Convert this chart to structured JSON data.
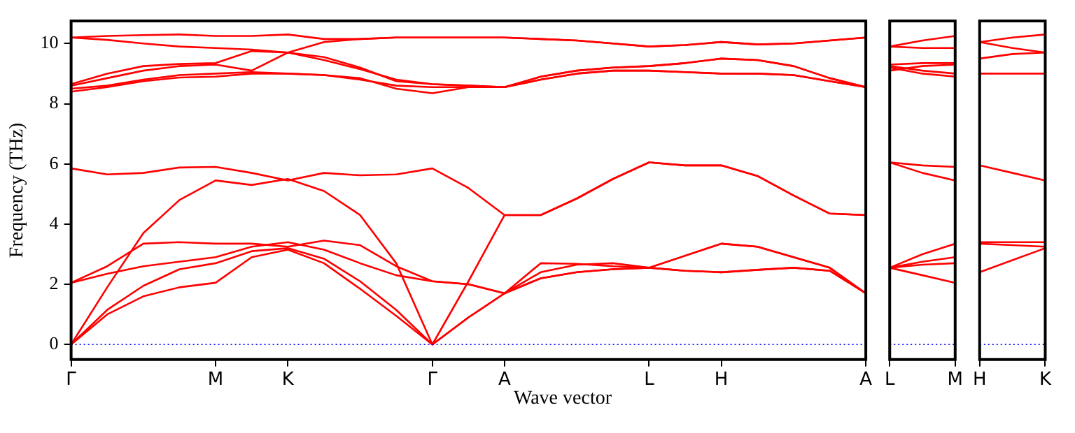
{
  "chart_data": [
    {
      "type": "line",
      "xlabel": "Wave vector",
      "ylabel": "Frequency (THz)",
      "grid": false,
      "legend": false,
      "marker": "none",
      "line_style": "solid",
      "categories": [
        "Γ",
        null,
        null,
        null,
        "M",
        null,
        "K",
        null,
        null,
        null,
        "Γ",
        null,
        "A",
        null,
        null,
        null,
        "L",
        null,
        "H",
        null,
        null,
        null,
        "A"
      ],
      "ylim": [
        -0.5,
        10.75
      ],
      "yticks": [
        0,
        2,
        4,
        6,
        8,
        10
      ],
      "ref_lines": [
        {
          "axis": "y",
          "value": 0,
          "label": null,
          "color": "#0000ff",
          "line_style": "dotted"
        }
      ],
      "series": [
        {
          "color": "#ff0000",
          "values": [
            0,
            1.0,
            1.6,
            1.9,
            2.05,
            2.9,
            3.15,
            2.7,
            1.85,
            0.95,
            0,
            0.9,
            1.7,
            2.2,
            2.4,
            2.5,
            2.55,
            2.45,
            2.4,
            2.48,
            2.55,
            2.45,
            1.7
          ]
        },
        {
          "color": "#ff0000",
          "values": [
            0,
            1.15,
            1.95,
            2.5,
            2.7,
            3.1,
            3.2,
            2.85,
            2.1,
            1.15,
            0,
            0.9,
            1.7,
            2.4,
            2.65,
            2.7,
            2.55,
            2.95,
            3.35,
            3.25,
            2.9,
            2.55,
            1.7
          ]
        },
        {
          "color": "#ff0000",
          "values": [
            0,
            1.9,
            3.7,
            4.8,
            5.45,
            5.3,
            5.5,
            5.1,
            4.3,
            2.7,
            0,
            2.1,
            4.3,
            4.3,
            4.85,
            5.5,
            6.05,
            5.95,
            5.95,
            5.6,
            4.95,
            4.35,
            4.3
          ]
        },
        {
          "color": "#ff0000",
          "values": [
            2.05,
            2.6,
            3.35,
            3.4,
            3.35,
            3.35,
            3.25,
            3.45,
            3.3,
            2.6,
            2.1,
            2.0,
            1.7,
            2.7,
            2.68,
            2.6,
            2.55,
            2.95,
            3.35,
            3.25,
            2.9,
            2.55,
            1.7
          ]
        },
        {
          "color": "#ff0000",
          "values": [
            2.05,
            2.35,
            2.6,
            2.75,
            2.9,
            3.25,
            3.4,
            3.15,
            2.7,
            2.3,
            2.1,
            2.0,
            1.7,
            2.2,
            2.4,
            2.5,
            2.55,
            2.45,
            2.4,
            2.48,
            2.55,
            2.45,
            1.7
          ]
        },
        {
          "color": "#ff0000",
          "values": [
            5.85,
            5.65,
            5.7,
            5.88,
            5.9,
            5.7,
            5.45,
            5.7,
            5.62,
            5.65,
            5.85,
            5.2,
            4.3,
            4.3,
            4.85,
            5.5,
            6.05,
            5.95,
            5.95,
            5.6,
            4.95,
            4.35,
            4.3
          ]
        },
        {
          "color": "#ff0000",
          "values": [
            8.4,
            8.55,
            8.75,
            8.87,
            8.9,
            9.0,
            9.0,
            8.95,
            8.85,
            8.5,
            8.35,
            8.55,
            8.55,
            8.8,
            9.0,
            9.1,
            9.1,
            9.05,
            9.0,
            9.0,
            8.95,
            8.75,
            8.55
          ]
        },
        {
          "color": "#ff0000",
          "values": [
            8.5,
            8.6,
            8.8,
            8.95,
            9.0,
            9.05,
            9.0,
            8.95,
            8.8,
            8.6,
            8.55,
            8.55,
            8.55,
            8.9,
            9.1,
            9.2,
            9.25,
            9.35,
            9.5,
            9.45,
            9.25,
            8.85,
            8.55
          ]
        },
        {
          "color": "#ff0000",
          "values": [
            8.6,
            8.85,
            9.1,
            9.25,
            9.3,
            9.1,
            9.7,
            9.55,
            9.2,
            8.75,
            8.65,
            8.6,
            8.55,
            8.9,
            9.1,
            9.2,
            9.25,
            9.35,
            9.5,
            9.45,
            9.25,
            8.85,
            8.55
          ]
        },
        {
          "color": "#ff0000",
          "values": [
            8.65,
            9.0,
            9.25,
            9.32,
            9.35,
            9.75,
            9.7,
            10.05,
            10.15,
            10.2,
            10.2,
            10.2,
            10.2,
            10.15,
            10.1,
            10.0,
            9.9,
            9.95,
            10.05,
            9.97,
            10.0,
            10.1,
            10.2
          ]
        },
        {
          "color": "#ff0000",
          "values": [
            10.2,
            10.12,
            10.0,
            9.9,
            9.85,
            9.8,
            9.7,
            9.45,
            9.15,
            8.8,
            8.65,
            8.6,
            8.55,
            8.8,
            9.0,
            9.1,
            9.1,
            9.05,
            9.0,
            9.0,
            8.95,
            8.75,
            8.55
          ]
        },
        {
          "color": "#ff0000",
          "values": [
            10.2,
            10.25,
            10.28,
            10.3,
            10.25,
            10.25,
            10.3,
            10.15,
            10.15,
            10.2,
            10.2,
            10.2,
            10.2,
            10.15,
            10.1,
            10.0,
            9.9,
            9.95,
            10.05,
            9.97,
            10.0,
            10.1,
            10.2
          ]
        }
      ]
    },
    {
      "type": "line",
      "grid": false,
      "legend": false,
      "marker": "none",
      "line_style": "solid",
      "tick_labels": "x",
      "categories": [
        "L",
        null,
        "M"
      ],
      "ylim": [
        -0.5,
        10.75
      ],
      "ref_lines": [
        {
          "axis": "y",
          "value": 0,
          "label": null,
          "color": "#0000ff",
          "line_style": "dotted"
        }
      ],
      "series": [
        {
          "color": "#ff0000",
          "values": [
            2.55,
            2.3,
            2.05
          ]
        },
        {
          "color": "#ff0000",
          "values": [
            2.55,
            2.65,
            2.7
          ]
        },
        {
          "color": "#ff0000",
          "values": [
            2.55,
            2.75,
            2.9
          ]
        },
        {
          "color": "#ff0000",
          "values": [
            2.55,
            3.0,
            3.35
          ]
        },
        {
          "color": "#ff0000",
          "values": [
            6.05,
            5.7,
            5.45
          ]
        },
        {
          "color": "#ff0000",
          "values": [
            6.05,
            5.95,
            5.9
          ]
        },
        {
          "color": "#ff0000",
          "values": [
            9.2,
            9.0,
            8.9
          ]
        },
        {
          "color": "#ff0000",
          "values": [
            9.25,
            9.1,
            9.0
          ]
        },
        {
          "color": "#ff0000",
          "values": [
            9.1,
            9.25,
            9.3
          ]
        },
        {
          "color": "#ff0000",
          "values": [
            9.3,
            9.35,
            9.35
          ]
        },
        {
          "color": "#ff0000",
          "values": [
            9.9,
            9.85,
            9.85
          ]
        },
        {
          "color": "#ff0000",
          "values": [
            9.9,
            10.1,
            10.25
          ]
        }
      ]
    },
    {
      "type": "line",
      "grid": false,
      "legend": false,
      "marker": "none",
      "line_style": "solid",
      "tick_labels": "x",
      "categories": [
        "H",
        null,
        "K"
      ],
      "ylim": [
        -0.5,
        10.75
      ],
      "ref_lines": [
        {
          "axis": "y",
          "value": 0,
          "label": null,
          "color": "#0000ff",
          "line_style": "dotted"
        }
      ],
      "series": [
        {
          "color": "#ff0000",
          "values": [
            2.4,
            2.8,
            3.2
          ]
        },
        {
          "color": "#ff0000",
          "values": [
            3.35,
            3.3,
            3.25
          ]
        },
        {
          "color": "#ff0000",
          "values": [
            3.4,
            3.4,
            3.4
          ]
        },
        {
          "color": "#ff0000",
          "values": [
            5.95,
            5.7,
            5.45
          ]
        },
        {
          "color": "#ff0000",
          "values": [
            9.0,
            9.0,
            9.0
          ]
        },
        {
          "color": "#ff0000",
          "values": [
            9.5,
            9.65,
            9.7
          ]
        },
        {
          "color": "#ff0000",
          "values": [
            10.05,
            9.85,
            9.7
          ]
        },
        {
          "color": "#ff0000",
          "values": [
            10.05,
            10.2,
            10.3
          ]
        }
      ]
    }
  ]
}
